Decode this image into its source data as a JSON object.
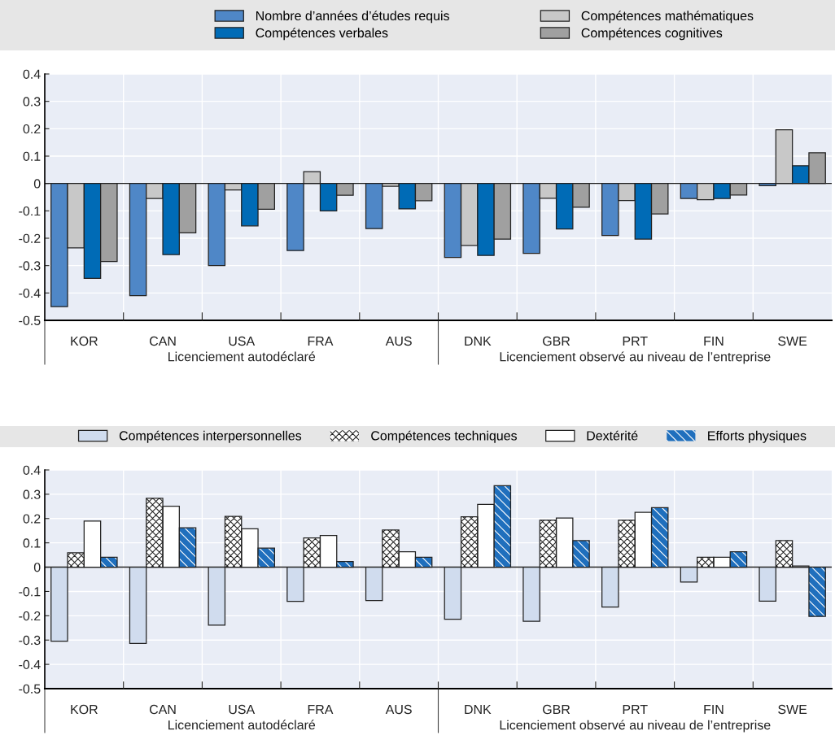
{
  "chart_data": [
    {
      "type": "bar",
      "categories": [
        "KOR",
        "CAN",
        "USA",
        "FRA",
        "AUS",
        "DNK",
        "GBR",
        "PRT",
        "FIN",
        "SWE"
      ],
      "series": [
        {
          "name": "Nombre d’années d’études requis",
          "color": "#4f87c7",
          "values": [
            -0.45,
            -0.41,
            -0.3,
            -0.245,
            -0.165,
            -0.27,
            -0.255,
            -0.19,
            -0.055,
            -0.008
          ]
        },
        {
          "name": "Compétences mathématiques",
          "color": "#c8c8c8",
          "values": [
            -0.235,
            -0.055,
            -0.024,
            0.043,
            -0.01,
            -0.226,
            -0.054,
            -0.062,
            -0.059,
            0.196
          ]
        },
        {
          "name": "Compétences verbales",
          "color": "#006bb6",
          "values": [
            -0.347,
            -0.26,
            -0.155,
            -0.1,
            -0.093,
            -0.263,
            -0.166,
            -0.203,
            -0.055,
            0.065
          ]
        },
        {
          "name": "Compétences cognitives",
          "color": "#a0a0a0",
          "values": [
            -0.285,
            -0.18,
            -0.094,
            -0.043,
            -0.063,
            -0.203,
            -0.087,
            -0.111,
            -0.042,
            0.112
          ]
        }
      ],
      "ylim": [
        -0.5,
        0.4
      ],
      "yticks": [
        {
          "value": -0.5,
          "label": "-0.5"
        },
        {
          "value": -0.4,
          "label": "-0.4"
        },
        {
          "value": -0.3,
          "label": "-0.3"
        },
        {
          "value": -0.2,
          "label": "-0.2"
        },
        {
          "value": -0.1,
          "label": "-0.1"
        },
        0,
        0.1,
        0.2,
        0.3,
        0.4
      ],
      "grid": true,
      "legend": "top",
      "annotations": [
        "Licenciement autodéclaré",
        "Licenciement observé au niveau de l’entreprise"
      ]
    },
    {
      "type": "bar",
      "categories": [
        "KOR",
        "CAN",
        "USA",
        "FRA",
        "AUS",
        "DNK",
        "GBR",
        "PRT",
        "FIN",
        "SWE"
      ],
      "series": [
        {
          "name": "Compétences interpersonnelles",
          "color": "#d0dcee",
          "values": [
            -0.305,
            -0.314,
            -0.239,
            -0.141,
            -0.137,
            -0.214,
            -0.223,
            -0.164,
            -0.061,
            -0.14
          ]
        },
        {
          "name": "Compétences techniques",
          "color": "#ffffff",
          "values": [
            0.059,
            0.283,
            0.209,
            0.12,
            0.153,
            0.207,
            0.193,
            0.193,
            0.041,
            0.109
          ]
        },
        {
          "name": "Dextérité",
          "color": "#ffffff",
          "values": [
            0.19,
            0.251,
            0.158,
            0.13,
            0.063,
            0.258,
            0.202,
            0.226,
            0.041,
            0.005
          ]
        },
        {
          "name": "Efforts physiques",
          "color": "#1f6fbd",
          "values": [
            0.041,
            0.162,
            0.078,
            0.023,
            0.041,
            0.335,
            0.109,
            0.245,
            0.063,
            -0.203
          ]
        }
      ],
      "ylim": [
        -0.5,
        0.4
      ],
      "yticks": [
        {
          "value": -0.5,
          "label": "-0.5"
        },
        {
          "value": -0.4,
          "label": "-0.4"
        },
        {
          "value": -0.3,
          "label": "-0.3"
        },
        {
          "value": -0.2,
          "label": "-0.2"
        },
        {
          "value": -0.1,
          "label": "-0.1"
        },
        0,
        0.1,
        0.2,
        0.3,
        0.4
      ],
      "grid": true,
      "legend": "top",
      "annotations": [
        "Licenciement autodéclaré",
        "Licenciement observé au niveau de l’entreprise"
      ]
    }
  ]
}
